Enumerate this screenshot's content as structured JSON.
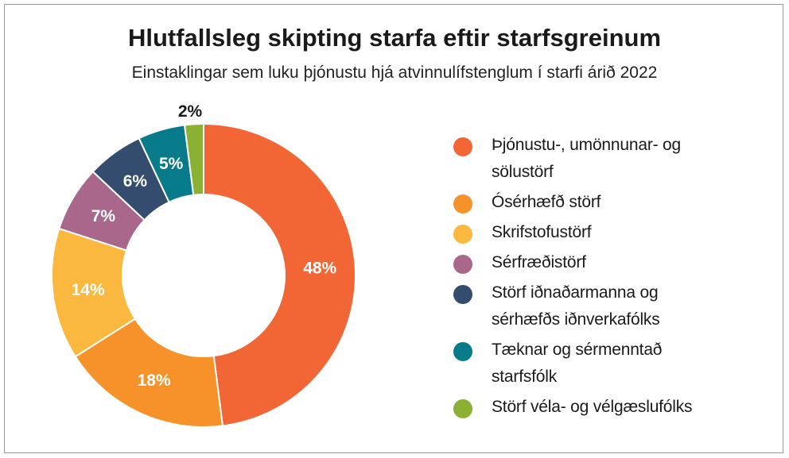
{
  "chart_data": {
    "type": "pie",
    "title": "Hlutfallsleg skipting starfa eftir starfsgreinum",
    "subtitle": "Einstaklingar sem luku þjónustu hjá atvinnulífstenglum í starfi árið 2022",
    "categories": [
      "Þjónustu-, umönnunar- og sölustörf",
      "Ósérhæfð störf",
      "Skrifstofustörf",
      "Sérfræðistörf",
      "Störf iðnaðarmanna og sérhæfðs iðnverkafólks",
      "Tæknar og sérmenntað starfsfólk",
      "Störf véla- og vélgæslufólks"
    ],
    "values": [
      48,
      18,
      14,
      7,
      6,
      5,
      2
    ],
    "data_labels": [
      "48%",
      "18%",
      "14%",
      "7%",
      "6%",
      "5%",
      "2%"
    ],
    "colors": [
      "#f26535",
      "#f7922b",
      "#fbb83e",
      "#a8678b",
      "#344c6e",
      "#087b8a",
      "#8ab134"
    ],
    "style": "donut",
    "legend": "right"
  },
  "legend_lines": [
    [
      "Þjónustu-, umönnunar- og",
      "sölustörf"
    ],
    [
      "Ósérhæfð störf"
    ],
    [
      "Skrifstofustörf"
    ],
    [
      "Sérfræðistörf"
    ],
    [
      "Störf iðnaðarmanna og",
      "sérhæfðs iðnverkafólks"
    ],
    [
      "Tæknar og sérmenntað",
      "starfsfólk"
    ],
    [
      "Störf véla- og vélgæslufólks"
    ]
  ]
}
